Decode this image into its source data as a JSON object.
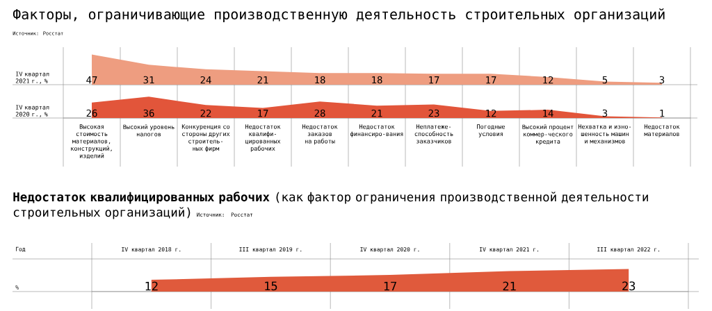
{
  "chart_data": [
    {
      "type": "area",
      "title": "Факторы, ограничивающие производственную деятельность строительных организаций",
      "annotations": [
        "Источник: Росстат"
      ],
      "ylabel": "IV квартал 2021 г., %",
      "categories": [
        null,
        null,
        null,
        null,
        null,
        null,
        null,
        null,
        null,
        null,
        null
      ],
      "values": [
        47,
        31,
        24,
        21,
        18,
        18,
        17,
        17,
        12,
        5,
        3
      ],
      "color": "#ee9d80",
      "data_labels": true
    },
    {
      "type": "area",
      "ylabel": "IV квартал 2020 г., %",
      "categories": [
        "Высокая стоимость материалов, конструкций, изделий",
        "Высокий уровень налогов",
        "Конкуренция со стороны других строитель-ных фирм",
        "Недостаток квалифи-цированных рабочих",
        "Недостаток заказов на работы",
        "Недостаток финансиро-вания",
        "Неплатеже-способность заказчиков",
        "Погодные условия",
        "Высокий процент коммер-ческого кредита",
        "Нехватка и изно-шенность машин и механизмов",
        "Недостаток материалов"
      ],
      "values": [
        26,
        36,
        22,
        17,
        28,
        21,
        23,
        12,
        14,
        3,
        1
      ],
      "color": "#e2553a",
      "data_labels": true
    },
    {
      "type": "area",
      "title": "**Недостаток квалифицированных рабочих** (как фактор ограничения производственной деятельности строительных организаций)",
      "annotations": [
        "Источник: Росстат"
      ],
      "xlabel": "Год",
      "ylabel": "%",
      "categories": [
        "IV квартал 2018 г.",
        "III квартал 2019 г.",
        "IV квартал 2020 г.",
        "IV квартал 2021 г.",
        "III квартал 2022 г."
      ],
      "values": [
        12,
        15,
        17,
        21,
        23
      ],
      "color": "#e05a3c",
      "data_labels": true
    }
  ]
}
